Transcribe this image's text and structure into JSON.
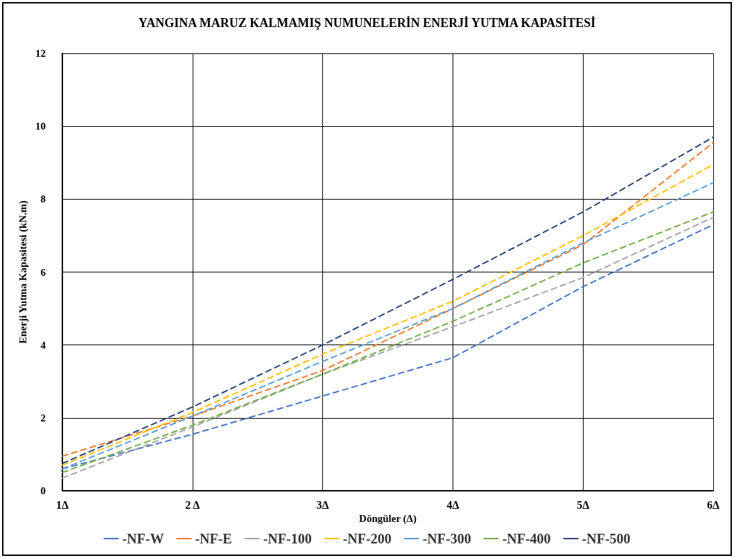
{
  "chart_data": {
    "type": "line",
    "title": "YANGINA MARUZ KALMAMIŞ NUMUNELERİN ENERJİ YUTMA KAPASİTESİ",
    "xlabel": "Döngüler (Δ)",
    "ylabel": "Enerji Yutma Kapasitesi (kN.m)",
    "categories": [
      "1Δ",
      "2 Δ",
      "3Δ",
      "4Δ",
      "5Δ",
      "6Δ"
    ],
    "series": [
      {
        "name": "-NF-W",
        "color": "#4472c4",
        "values": [
          0.6,
          1.55,
          2.6,
          3.65,
          5.6,
          7.3
        ]
      },
      {
        "name": "-NF-E",
        "color": "#ed7d31",
        "values": [
          0.95,
          2.05,
          3.3,
          5.0,
          6.75,
          9.55
        ]
      },
      {
        "name": "-NF-100",
        "color": "#a5a5a5",
        "values": [
          0.35,
          1.75,
          3.2,
          4.5,
          5.85,
          7.5
        ]
      },
      {
        "name": "-NF-200",
        "color": "#ffc000",
        "values": [
          0.7,
          2.15,
          3.75,
          5.2,
          7.0,
          8.95
        ]
      },
      {
        "name": "-NF-300",
        "color": "#5b9bd5",
        "values": [
          0.6,
          2.05,
          3.55,
          5.0,
          6.8,
          8.45
        ]
      },
      {
        "name": "-NF-400",
        "color": "#70ad47",
        "values": [
          0.5,
          1.8,
          3.2,
          4.65,
          6.25,
          7.65
        ]
      },
      {
        "name": "-NF-500",
        "color": "#264478",
        "values": [
          0.75,
          2.3,
          4.0,
          5.8,
          7.65,
          9.7
        ]
      }
    ],
    "ylim": [
      0,
      12
    ],
    "yticks": [
      0,
      2,
      4,
      6,
      8,
      10,
      12
    ],
    "grid": true,
    "legend": "bottom",
    "marker": "none",
    "line_style": "dashed"
  }
}
